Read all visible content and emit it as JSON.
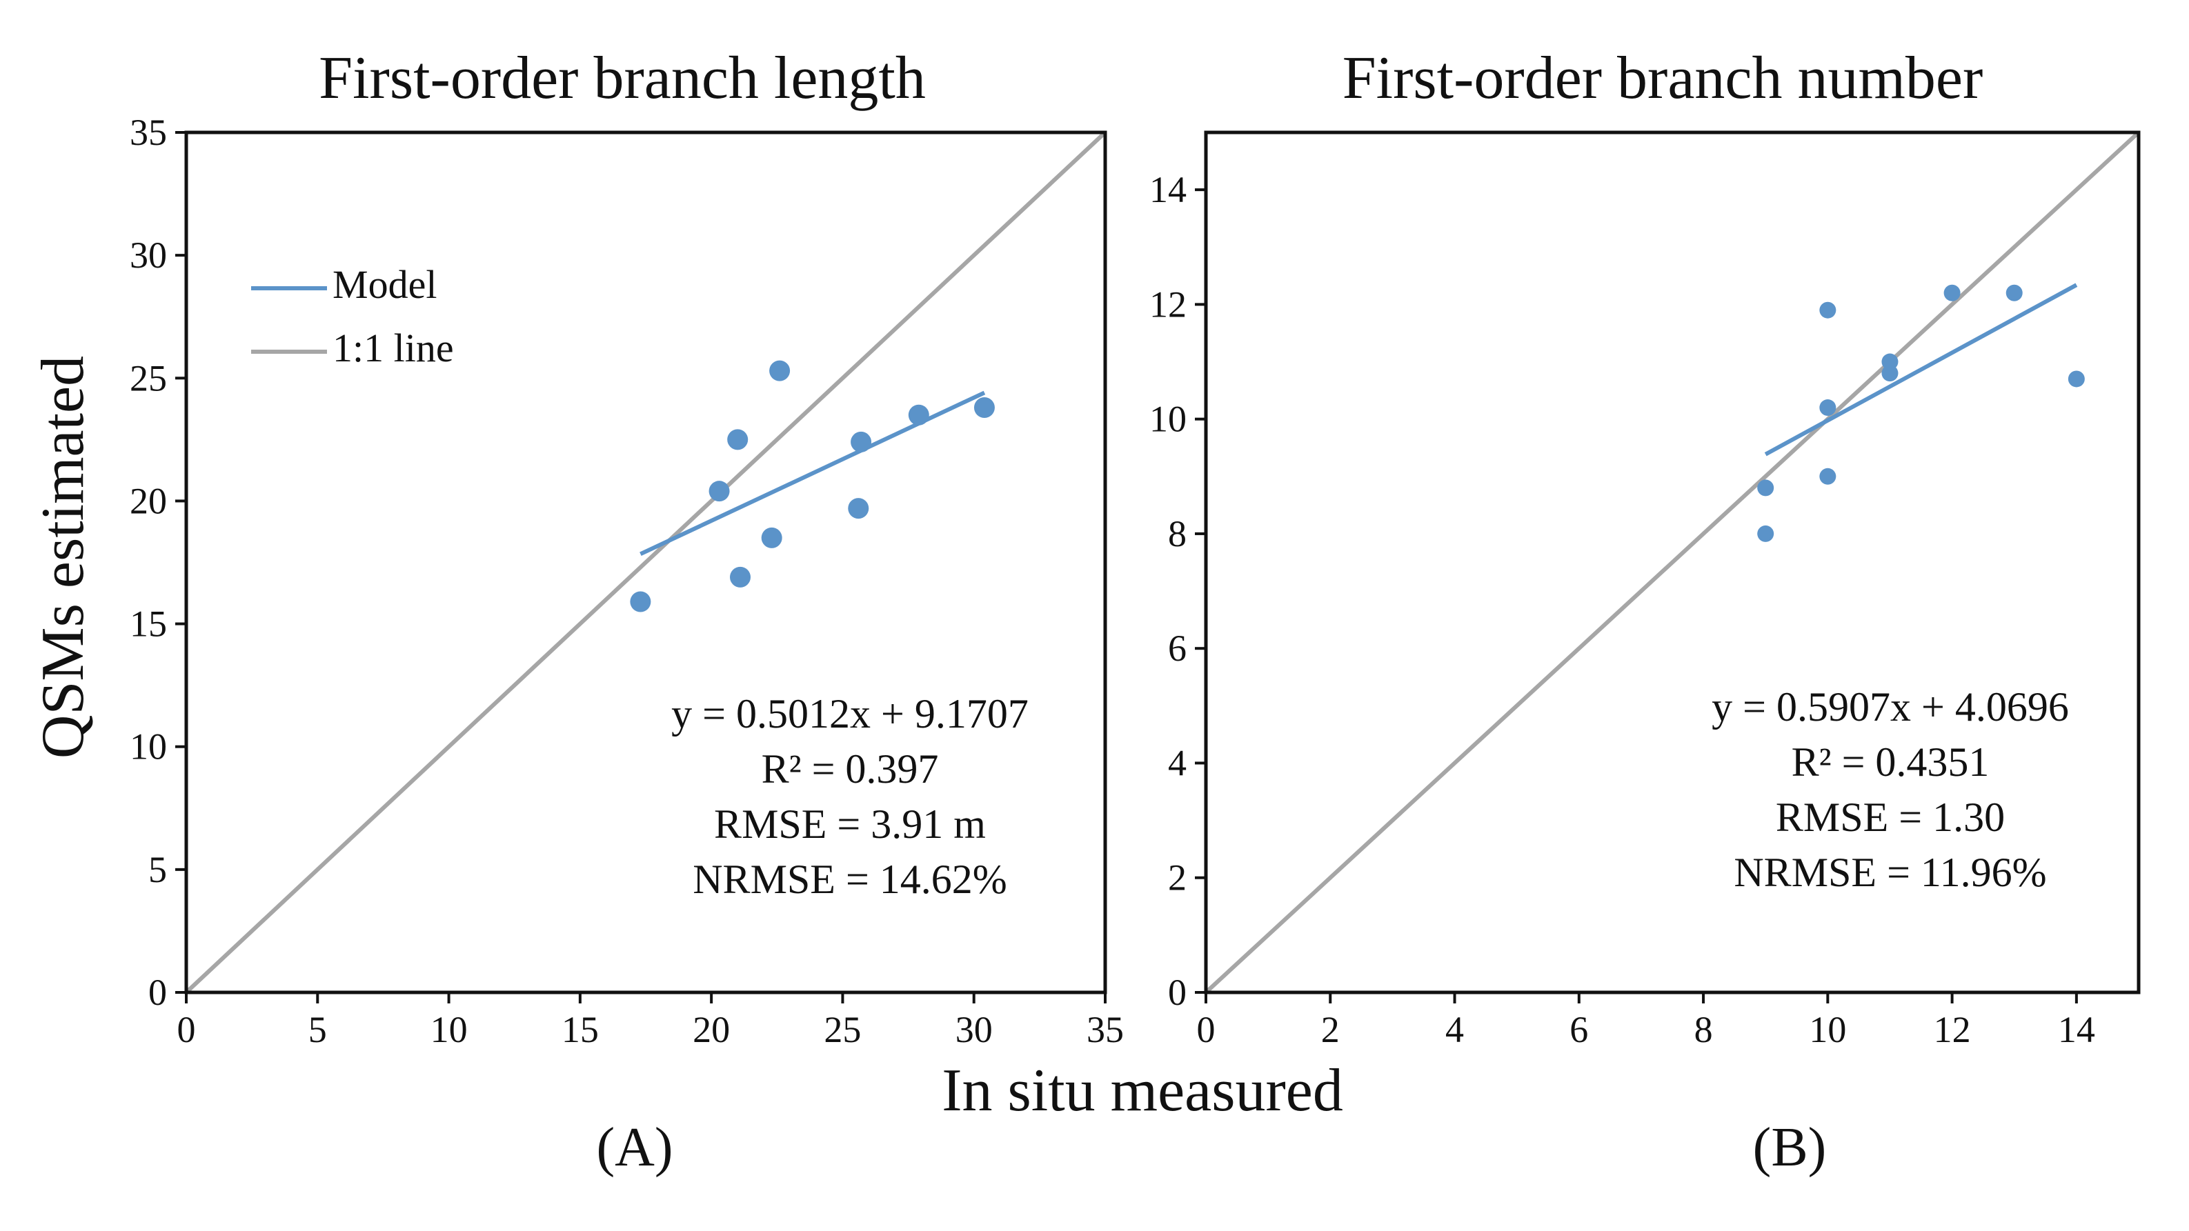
{
  "figure": {
    "ylabel": "QSMs estimated",
    "xlabel": "In situ measured"
  },
  "legend": {
    "model": "Model",
    "one_to_one": "1:1 line"
  },
  "colors": {
    "model": "#5b93c9",
    "points": "#5b93c9",
    "one_to_one": "#a6a6a6",
    "axis": "#111111"
  },
  "chart_data": [
    {
      "type": "scatter",
      "title": "First-order branch length",
      "panel_label": "(A)",
      "xlim": [
        0,
        35
      ],
      "ylim": [
        0,
        35
      ],
      "xticks": [
        0,
        5,
        10,
        15,
        20,
        25,
        30,
        35
      ],
      "yticks": [
        0,
        5,
        10,
        15,
        20,
        25,
        30,
        35
      ],
      "x": [
        17.3,
        20.3,
        21.0,
        21.1,
        22.3,
        22.6,
        25.6,
        25.7,
        27.9,
        30.4
      ],
      "y": [
        15.9,
        20.4,
        22.5,
        16.9,
        18.5,
        25.3,
        19.7,
        22.4,
        23.5,
        23.8
      ],
      "model": {
        "slope": 0.5012,
        "intercept": 9.1707,
        "x_range": [
          17.3,
          30.4
        ]
      },
      "equation": "y = 0.5012x + 9.1707",
      "r2": "R² = 0.397",
      "rmse": "RMSE = 3.91 m",
      "nrmse": "NRMSE = 14.62%"
    },
    {
      "type": "scatter",
      "title": "First-order branch number",
      "panel_label": "(B)",
      "xlim": [
        0,
        15
      ],
      "ylim": [
        0,
        15
      ],
      "xticks": [
        0,
        2,
        4,
        6,
        8,
        10,
        12,
        14
      ],
      "yticks": [
        0,
        2,
        4,
        6,
        8,
        10,
        12,
        14
      ],
      "x": [
        9,
        9,
        10,
        10,
        10,
        11,
        11,
        12,
        13,
        14
      ],
      "y": [
        8.0,
        8.8,
        9.0,
        10.2,
        11.9,
        10.8,
        11.0,
        12.2,
        12.2,
        10.7
      ],
      "model": {
        "slope": 0.5907,
        "intercept": 4.0696,
        "x_range": [
          9,
          14
        ]
      },
      "equation": "y = 0.5907x + 4.0696",
      "r2": "R² = 0.4351",
      "rmse": "RMSE = 1.30",
      "nrmse": "NRMSE = 11.96%"
    }
  ]
}
